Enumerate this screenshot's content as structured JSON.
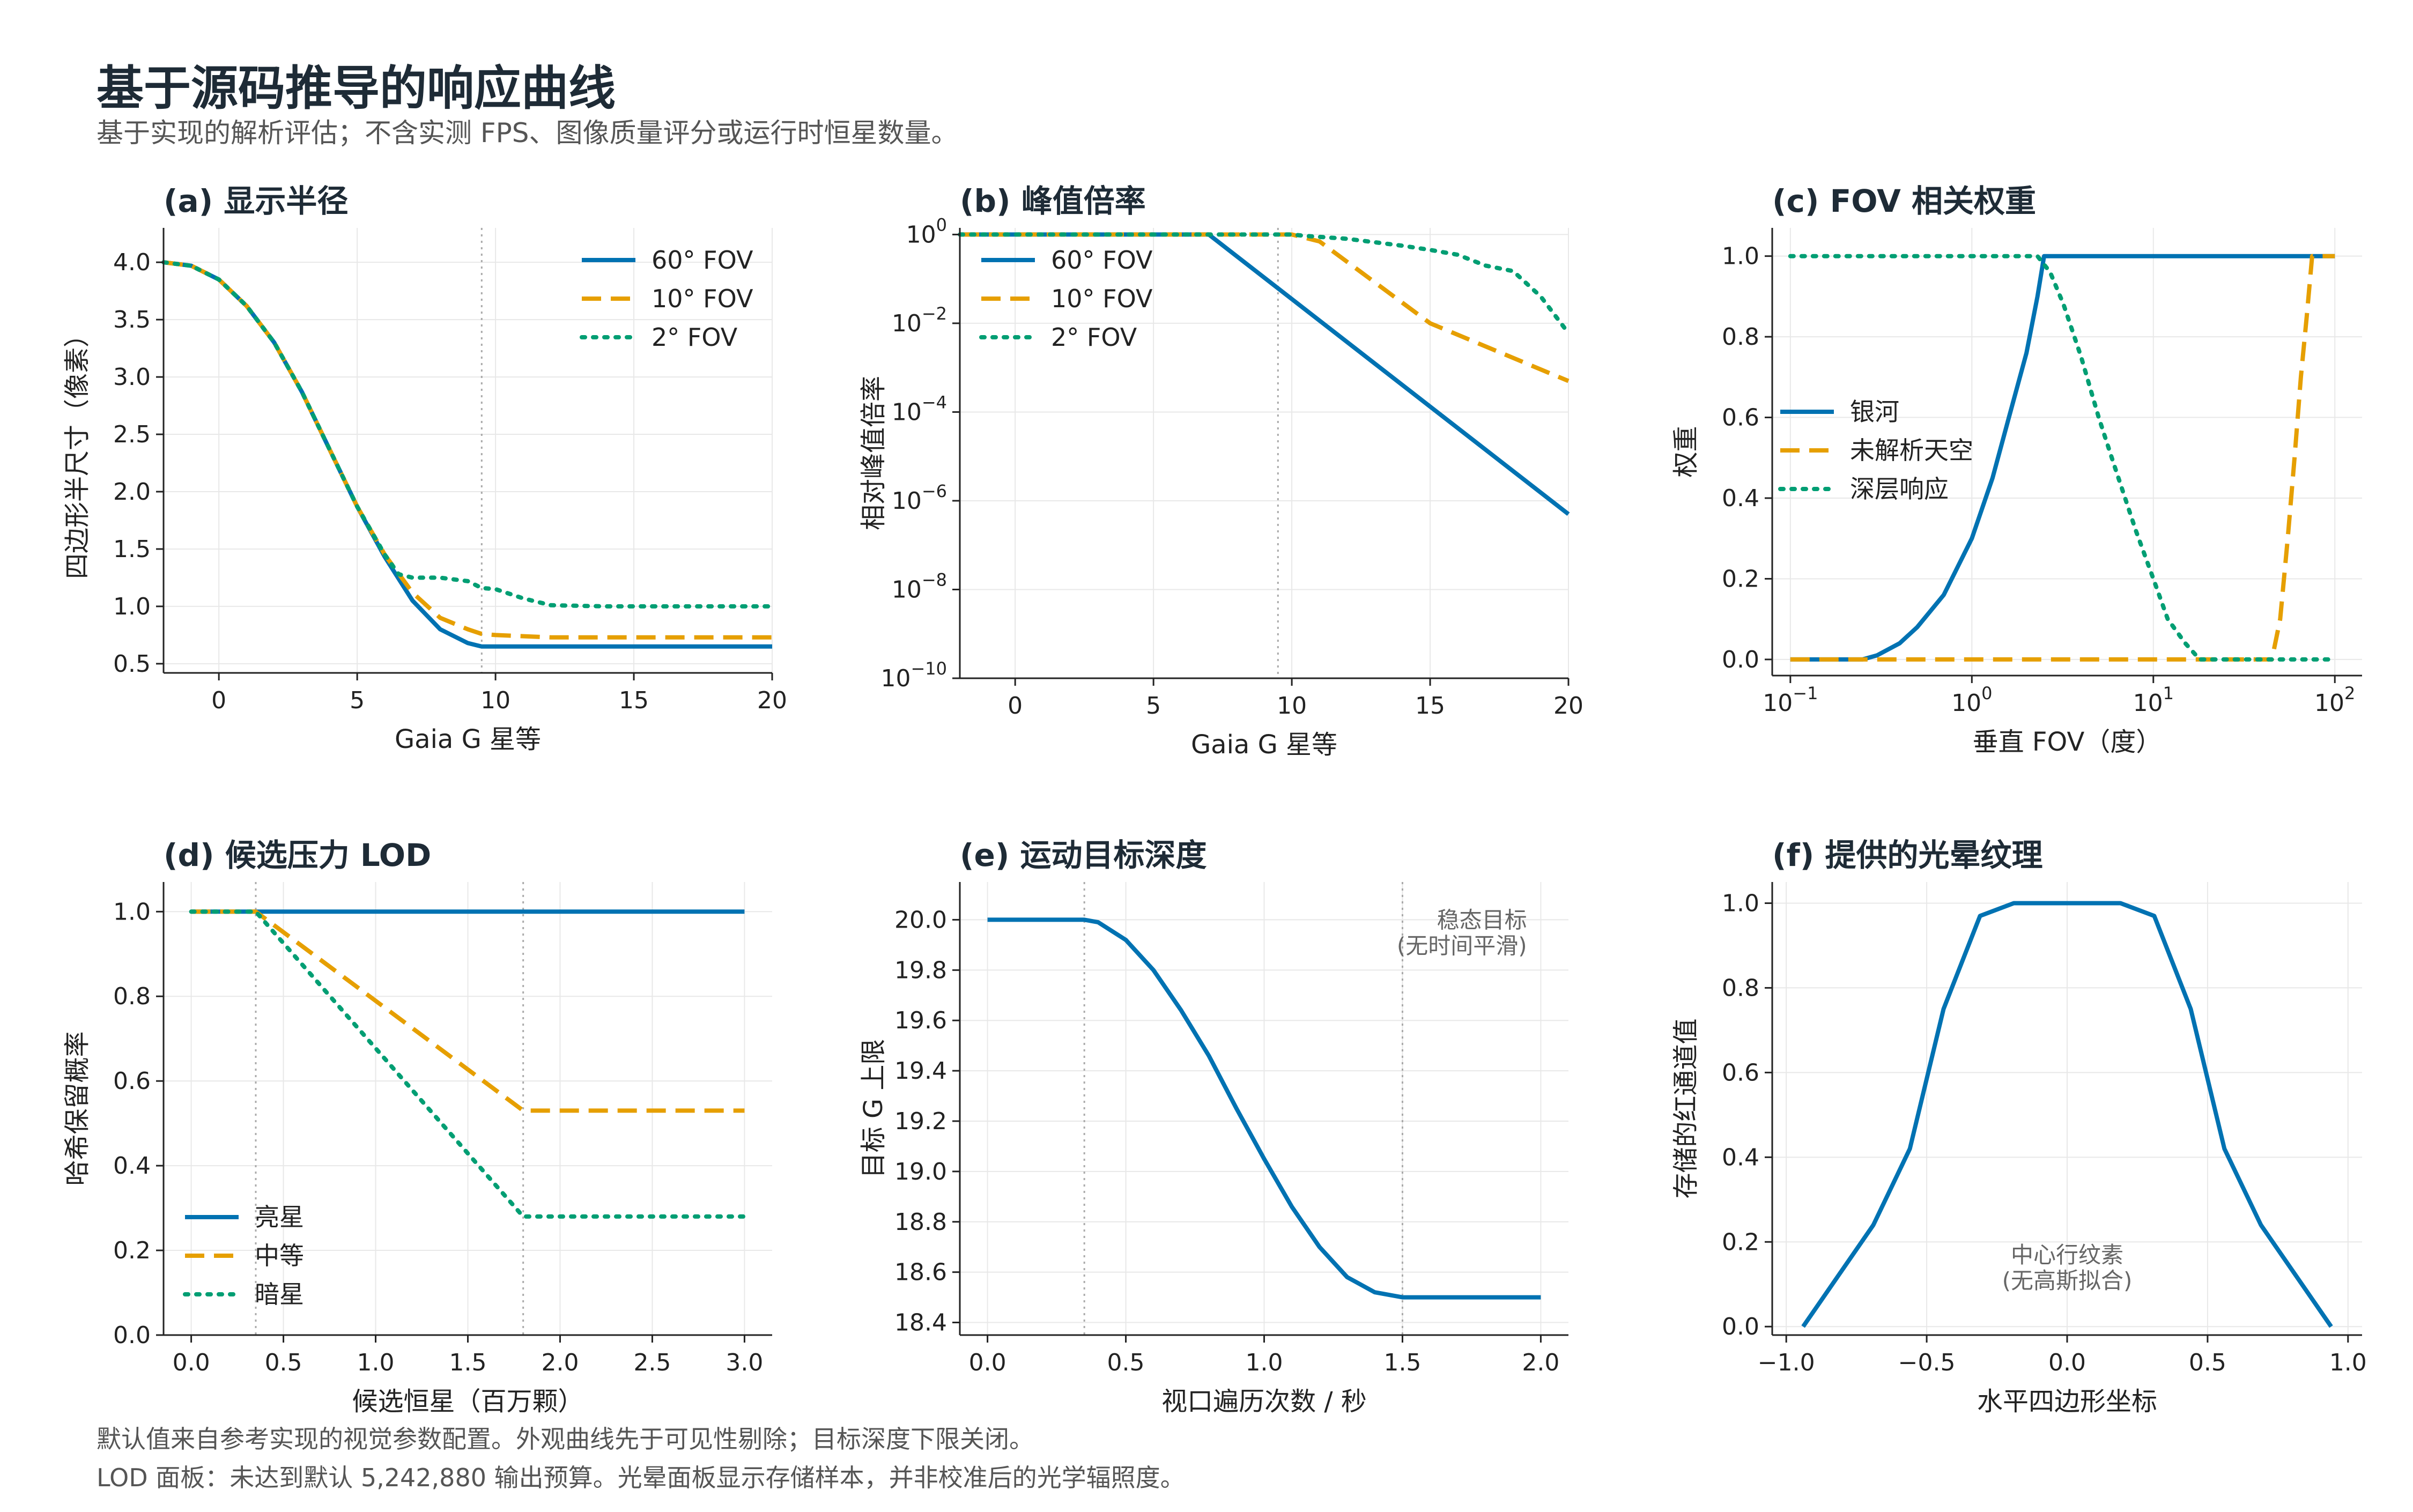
{
  "figure": {
    "title": "基于源码推导的响应曲线",
    "subtitle": "基于实现的解析评估；不含实测 FPS、图像质量评分或运行时恒星数量。",
    "footnotes": [
      "默认值来自参考实现的视觉参数配置。外观曲线先于可见性剔除；目标深度下限关闭。",
      "LOD 面板：未达到默认 5,242,880 输出预算。光晕面板显示存储样本，并非校准后的光学辐照度。"
    ]
  },
  "colors": {
    "blue": "#0072b2",
    "orange": "#e69f00",
    "green": "#009e73",
    "title": "#1e2b36"
  },
  "chart_data": [
    {
      "id": "a",
      "type": "line",
      "title": "(a) 显示半径",
      "xlabel": "Gaia G 星等",
      "ylabel": "四边形半尺寸（像素）",
      "xlim": [
        -2,
        20
      ],
      "ylim": [
        0.42,
        4.3
      ],
      "xticks": [
        0,
        5,
        10,
        15,
        20
      ],
      "xtick_labels": [
        "0",
        "5",
        "10",
        "15",
        "20"
      ],
      "yticks": [
        0.5,
        1.0,
        1.5,
        2.0,
        2.5,
        3.0,
        3.5,
        4.0
      ],
      "ytick_labels": [
        "0.5",
        "1.0",
        "1.5",
        "2.0",
        "2.5",
        "3.0",
        "3.5",
        "4.0"
      ],
      "grid": true,
      "legend": "top-right",
      "vlines": [
        9.5
      ],
      "series": [
        {
          "name": "60° FOV",
          "style": "solid",
          "color": "#0072b2",
          "x": [
            -2,
            -1,
            0,
            1,
            2,
            3,
            4,
            5,
            6,
            7,
            8,
            9,
            9.5,
            10,
            12,
            14,
            16,
            18,
            20
          ],
          "y": [
            4.0,
            3.97,
            3.85,
            3.62,
            3.3,
            2.87,
            2.37,
            1.87,
            1.43,
            1.05,
            0.8,
            0.68,
            0.65,
            0.65,
            0.65,
            0.65,
            0.65,
            0.65,
            0.65
          ]
        },
        {
          "name": "10° FOV",
          "style": "dashed",
          "color": "#e69f00",
          "x": [
            -2,
            -1,
            0,
            1,
            2,
            3,
            4,
            5,
            6,
            7,
            8,
            9,
            9.5,
            10,
            12,
            14,
            16,
            18,
            20
          ],
          "y": [
            4.0,
            3.97,
            3.85,
            3.62,
            3.3,
            2.87,
            2.37,
            1.87,
            1.45,
            1.12,
            0.9,
            0.8,
            0.76,
            0.75,
            0.73,
            0.73,
            0.73,
            0.73,
            0.73
          ]
        },
        {
          "name": "2° FOV",
          "style": "dotted",
          "color": "#009e73",
          "x": [
            -2,
            -1,
            0,
            1,
            2,
            3,
            4,
            5,
            6,
            6.5,
            7,
            8,
            9,
            9.5,
            10,
            11,
            12,
            14,
            16,
            18,
            20
          ],
          "y": [
            4.0,
            3.97,
            3.85,
            3.62,
            3.3,
            2.87,
            2.37,
            1.87,
            1.45,
            1.28,
            1.25,
            1.25,
            1.22,
            1.16,
            1.15,
            1.07,
            1.01,
            1.0,
            1.0,
            1.0,
            1.0
          ]
        }
      ]
    },
    {
      "id": "b",
      "type": "line",
      "title": "(b) 峰值倍率",
      "xlabel": "Gaia G 星等",
      "ylabel": "相对峰值倍率",
      "yscale": "log",
      "xlim": [
        -2,
        20
      ],
      "ylim": [
        -10,
        0.15
      ],
      "xticks": [
        0,
        5,
        10,
        15,
        20
      ],
      "xtick_labels": [
        "0",
        "5",
        "10",
        "15",
        "20"
      ],
      "yticks": [
        0,
        -2,
        -4,
        -6,
        -8,
        -10
      ],
      "ytick_labels": [
        "10^0",
        "10^-2",
        "10^-4",
        "10^-6",
        "10^-8",
        "10^-10"
      ],
      "grid": true,
      "legend": "top-left",
      "vlines": [
        9.5
      ],
      "series": [
        {
          "name": "60° FOV",
          "style": "solid",
          "color": "#0072b2",
          "x": [
            -2,
            7,
            20
          ],
          "y": [
            1,
            1,
            5e-07
          ]
        },
        {
          "name": "10° FOV",
          "style": "dashed",
          "color": "#e69f00",
          "x": [
            -2,
            10,
            11,
            15,
            20
          ],
          "y": [
            1,
            1,
            0.7,
            0.01,
            0.0005
          ]
        },
        {
          "name": "2° FOV",
          "style": "dotted",
          "color": "#009e73",
          "x": [
            -2,
            10,
            10.5,
            12,
            14,
            15,
            16,
            17,
            18,
            19,
            20
          ],
          "y": [
            1,
            1,
            0.93,
            0.8,
            0.56,
            0.45,
            0.35,
            0.2,
            0.15,
            0.04,
            0.006
          ]
        }
      ]
    },
    {
      "id": "c",
      "type": "line",
      "title": "(c) FOV 相关权重",
      "xlabel": "垂直 FOV（度）",
      "ylabel": "权重",
      "xscale": "log",
      "xlim": [
        -1.1,
        2.15
      ],
      "ylim": [
        -0.04,
        1.07
      ],
      "xticks": [
        -1,
        0,
        1,
        2
      ],
      "xtick_labels": [
        "10^-1",
        "10^0",
        "10^1",
        "10^2"
      ],
      "yticks": [
        0.0,
        0.2,
        0.4,
        0.6,
        0.8,
        1.0
      ],
      "ytick_labels": [
        "0.0",
        "0.2",
        "0.4",
        "0.6",
        "0.8",
        "1.0"
      ],
      "grid": true,
      "legend": "center-left",
      "series": [
        {
          "name": "银河",
          "style": "solid",
          "color": "#0072b2",
          "x": [
            0.1,
            0.25,
            0.3,
            0.4,
            0.5,
            0.7,
            1.0,
            1.3,
            1.6,
            2.0,
            2.3,
            2.5,
            5,
            10,
            50,
            100
          ],
          "y": [
            0,
            0,
            0.01,
            0.04,
            0.08,
            0.16,
            0.3,
            0.45,
            0.6,
            0.76,
            0.9,
            1.0,
            1.0,
            1.0,
            1.0,
            1.0
          ]
        },
        {
          "name": "未解析天空",
          "style": "dashed",
          "color": "#e69f00",
          "x": [
            0.1,
            45,
            50,
            55,
            60,
            65,
            70,
            75,
            100
          ],
          "y": [
            0,
            0,
            0.1,
            0.3,
            0.5,
            0.7,
            0.85,
            1.0,
            1.0
          ]
        },
        {
          "name": "深层响应",
          "style": "dotted",
          "color": "#009e73",
          "x": [
            0.1,
            2.3,
            2.7,
            3.2,
            4,
            5,
            6,
            8,
            10,
            12,
            15,
            18,
            25,
            50,
            100
          ],
          "y": [
            1.0,
            1.0,
            0.96,
            0.88,
            0.75,
            0.6,
            0.49,
            0.32,
            0.2,
            0.1,
            0.04,
            0,
            0,
            0,
            0
          ]
        }
      ]
    },
    {
      "id": "d",
      "type": "line",
      "title": "(d) 候选压力 LOD",
      "xlabel": "候选恒星（百万颗）",
      "ylabel": "哈希保留概率",
      "xlim": [
        -0.15,
        3.15
      ],
      "ylim": [
        0,
        1.07
      ],
      "xticks": [
        0.0,
        0.5,
        1.0,
        1.5,
        2.0,
        2.5,
        3.0
      ],
      "xtick_labels": [
        "0.0",
        "0.5",
        "1.0",
        "1.5",
        "2.0",
        "2.5",
        "3.0"
      ],
      "yticks": [
        0.0,
        0.2,
        0.4,
        0.6,
        0.8,
        1.0
      ],
      "ytick_labels": [
        "0.0",
        "0.2",
        "0.4",
        "0.6",
        "0.8",
        "1.0"
      ],
      "grid": true,
      "legend": "bottom-left",
      "vlines": [
        0.35,
        1.8
      ],
      "series": [
        {
          "name": "亮星",
          "style": "solid",
          "color": "#0072b2",
          "x": [
            0,
            3
          ],
          "y": [
            1.0,
            1.0
          ]
        },
        {
          "name": "中等",
          "style": "dashed",
          "color": "#e69f00",
          "x": [
            0,
            0.35,
            1.8,
            3
          ],
          "y": [
            1.0,
            1.0,
            0.53,
            0.53
          ]
        },
        {
          "name": "暗星",
          "style": "dotted",
          "color": "#009e73",
          "x": [
            0,
            0.35,
            1.8,
            3
          ],
          "y": [
            1.0,
            1.0,
            0.28,
            0.28
          ]
        }
      ]
    },
    {
      "id": "e",
      "type": "line",
      "title": "(e) 运动目标深度",
      "xlabel": "视口遍历次数 / 秒",
      "ylabel": "目标 G 上限",
      "xlim": [
        -0.1,
        2.1
      ],
      "ylim": [
        18.35,
        20.15
      ],
      "xticks": [
        0.0,
        0.5,
        1.0,
        1.5,
        2.0
      ],
      "xtick_labels": [
        "0.0",
        "0.5",
        "1.0",
        "1.5",
        "2.0"
      ],
      "yticks": [
        18.4,
        18.6,
        18.8,
        19.0,
        19.2,
        19.4,
        19.6,
        19.8,
        20.0
      ],
      "ytick_labels": [
        "18.4",
        "18.6",
        "18.8",
        "19.0",
        "19.2",
        "19.4",
        "19.6",
        "19.8",
        "20.0"
      ],
      "grid": true,
      "vlines": [
        0.35,
        1.5
      ],
      "annotations": [
        {
          "text": [
            "稳态目标",
            "(无时间平滑)"
          ],
          "x": 1.95,
          "y": 20.0
        }
      ],
      "series": [
        {
          "name": "",
          "style": "solid",
          "color": "#0072b2",
          "x": [
            0,
            0.35,
            0.4,
            0.5,
            0.6,
            0.7,
            0.8,
            0.9,
            1.0,
            1.1,
            1.2,
            1.3,
            1.4,
            1.5,
            2.0
          ],
          "y": [
            20.0,
            20.0,
            19.99,
            19.92,
            19.8,
            19.64,
            19.46,
            19.25,
            19.05,
            18.86,
            18.7,
            18.58,
            18.52,
            18.5,
            18.5
          ]
        }
      ]
    },
    {
      "id": "f",
      "type": "line",
      "title": "(f) 提供的光晕纹理",
      "xlabel": "水平四边形坐标",
      "ylabel": "存储的红通道值",
      "xlim": [
        -1.05,
        1.05
      ],
      "ylim": [
        -0.02,
        1.05
      ],
      "xticks": [
        -1.0,
        -0.5,
        0.0,
        0.5,
        1.0
      ],
      "xtick_labels": [
        "−1.0",
        "−0.5",
        "0.0",
        "0.5",
        "1.0"
      ],
      "yticks": [
        0.0,
        0.2,
        0.4,
        0.6,
        0.8,
        1.0
      ],
      "ytick_labels": [
        "0.0",
        "0.2",
        "0.4",
        "0.6",
        "0.8",
        "1.0"
      ],
      "grid": true,
      "annotations": [
        {
          "text": [
            "中心行纹素",
            "(无高斯拟合)"
          ],
          "x": 0.0,
          "y": 0.17
        }
      ],
      "series": [
        {
          "name": "",
          "style": "solid",
          "color": "#0072b2",
          "x": [
            -0.94,
            -0.69,
            -0.56,
            -0.44,
            -0.31,
            -0.19,
            0.19,
            0.31,
            0.44,
            0.56,
            0.69,
            0.94
          ],
          "y": [
            0.0,
            0.24,
            0.42,
            0.75,
            0.97,
            1.0,
            1.0,
            0.97,
            0.75,
            0.42,
            0.24,
            0.0
          ]
        }
      ]
    }
  ]
}
